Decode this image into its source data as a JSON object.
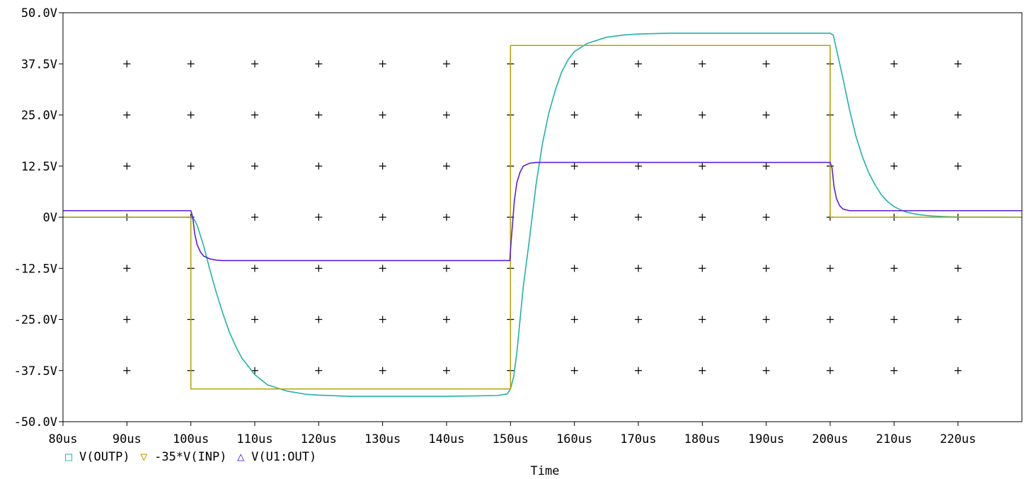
{
  "chart_data": {
    "type": "line",
    "xlabel": "Time",
    "ylabel": "",
    "xlim": [
      80,
      230
    ],
    "ylim": [
      -50,
      50
    ],
    "x_unit": "us",
    "y_unit": "V",
    "x_tick_values": [
      80,
      90,
      100,
      110,
      120,
      130,
      140,
      150,
      160,
      170,
      180,
      190,
      200,
      210,
      220
    ],
    "x_tick_labels": [
      "80us",
      "90us",
      "100us",
      "110us",
      "120us",
      "130us",
      "140us",
      "150us",
      "160us",
      "170us",
      "180us",
      "190us",
      "200us",
      "210us",
      "220us"
    ],
    "y_tick_values": [
      50,
      37.5,
      25,
      12.5,
      0,
      -12.5,
      -25,
      -37.5,
      -50
    ],
    "y_tick_labels": [
      "50.0V",
      "37.5V",
      "25.0V",
      "12.5V",
      "0V",
      "-12.5V",
      "-25.0V",
      "-37.5V",
      "-50.0V"
    ],
    "grid": "crosshair markers",
    "legend_position": "bottom-left",
    "series": [
      {
        "name": "V(OUTP)",
        "marker": "□",
        "color": "#20b2aa",
        "x": [
          80,
          100,
          100.5,
          101,
          102,
          103,
          104,
          105,
          106,
          107,
          108,
          110,
          112,
          115,
          118,
          120,
          125,
          130,
          140,
          148,
          149.5,
          150,
          150.5,
          151,
          152,
          153,
          154,
          155,
          156,
          157,
          158,
          159,
          160,
          162,
          165,
          168,
          170,
          175,
          180,
          190,
          200,
          200.5,
          201,
          202,
          203,
          204,
          205,
          206,
          207,
          208,
          209,
          210,
          211,
          212,
          214,
          216,
          218,
          220,
          230
        ],
        "y": [
          0,
          0,
          -0.5,
          -2,
          -7,
          -13,
          -18.5,
          -23.5,
          -28,
          -31.5,
          -34.5,
          -38.5,
          -41,
          -42.5,
          -43.3,
          -43.5,
          -43.8,
          -43.8,
          -43.8,
          -43.6,
          -43.2,
          -42,
          -39,
          -33,
          -17,
          -5,
          8,
          18,
          25.5,
          31,
          35.5,
          38.5,
          40.5,
          42.5,
          44,
          44.6,
          44.8,
          45,
          45,
          45,
          45,
          44.5,
          41,
          34,
          26.5,
          20,
          15,
          11,
          8,
          5.5,
          3.8,
          2.6,
          1.8,
          1.2,
          0.6,
          0.3,
          0.15,
          0.05,
          0
        ]
      },
      {
        "name": "-35*V(INP)",
        "marker": "▽",
        "color": "#b5a400",
        "x": [
          80,
          100,
          100,
          150,
          150,
          200,
          200,
          230
        ],
        "y": [
          0,
          0,
          -42,
          -42,
          42,
          42,
          0,
          0
        ]
      },
      {
        "name": "V(U1:OUT)",
        "marker": "△",
        "color": "#5a1ee0",
        "x": [
          80,
          100,
          100.3,
          100.6,
          101,
          101.5,
          102,
          103,
          104,
          105,
          110,
          149.9,
          150,
          150.3,
          150.6,
          151,
          151.5,
          152,
          153,
          154,
          160,
          200,
          200.3,
          200.6,
          201,
          201.5,
          202,
          203,
          230
        ],
        "y": [
          1.6,
          1.6,
          0,
          -4,
          -6.8,
          -8.5,
          -9.5,
          -10.2,
          -10.5,
          -10.6,
          -10.6,
          -10.6,
          -8,
          -2,
          4,
          8.5,
          11,
          12.5,
          13.2,
          13.4,
          13.4,
          13.4,
          12,
          7.5,
          4.5,
          2.8,
          2,
          1.6,
          1.6
        ]
      }
    ]
  }
}
